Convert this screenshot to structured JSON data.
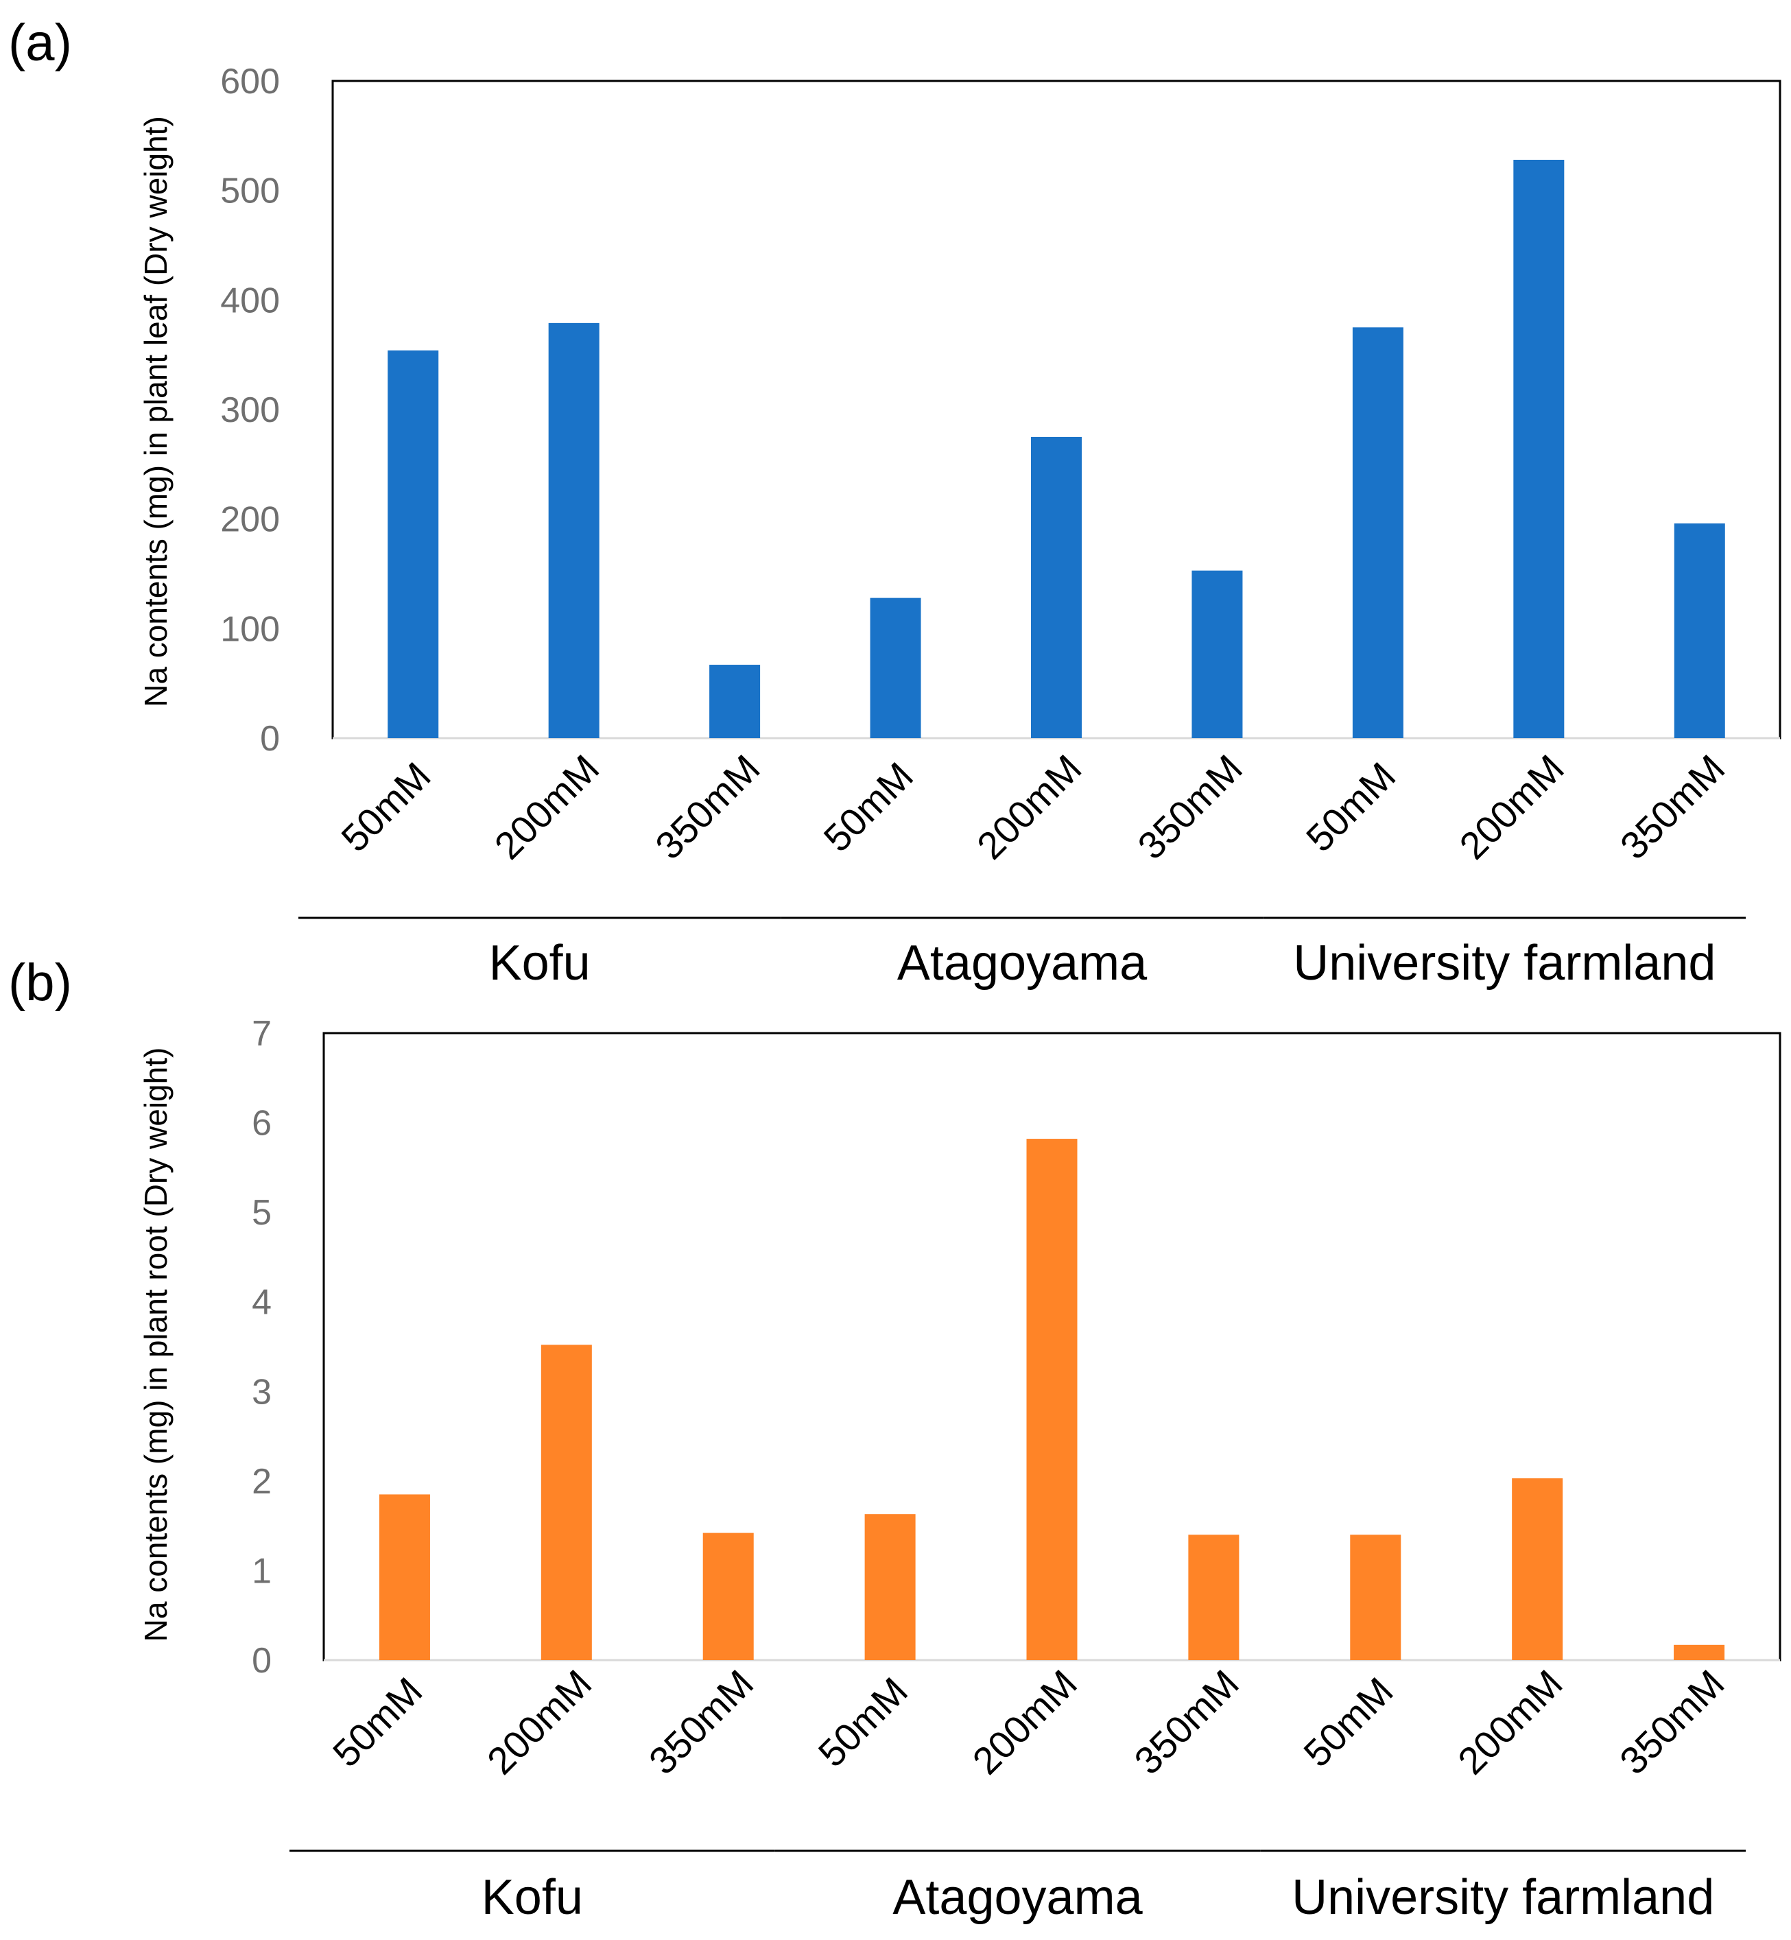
{
  "chart_data": [
    {
      "panel": "(a)",
      "type": "bar",
      "ylabel": "Na contents (mg) in plant leaf (Dry weight)",
      "ylim": [
        0,
        600
      ],
      "yticks": [
        "0",
        "100",
        "200",
        "300",
        "400",
        "500",
        "600"
      ],
      "categories": [
        "50mM",
        "200mM",
        "350mM",
        "50mM",
        "200mM",
        "350mM",
        "50mM",
        "200mM",
        "350mM"
      ],
      "groups": [
        "Kofu",
        "Atagoyama",
        "University farmland"
      ],
      "values": [
        354,
        379,
        67,
        128,
        275,
        153,
        375,
        528,
        196
      ],
      "color": "#1a73c8"
    },
    {
      "panel": "(b)",
      "type": "bar",
      "ylabel": "Na contents (mg) in plant root (Dry weight)",
      "ylim": [
        0,
        7
      ],
      "yticks": [
        "0",
        "1",
        "2",
        "3",
        "4",
        "5",
        "6",
        "7"
      ],
      "categories": [
        "50mM",
        "200mM",
        "350mM",
        "50mM",
        "200mM",
        "350mM",
        "50mM",
        "200mM",
        "350mM"
      ],
      "groups": [
        "Kofu",
        "Atagoyama",
        "University farmland"
      ],
      "values": [
        1.85,
        3.52,
        1.42,
        1.63,
        5.82,
        1.4,
        1.4,
        2.03,
        0.17
      ],
      "color": "#ff8427"
    }
  ]
}
